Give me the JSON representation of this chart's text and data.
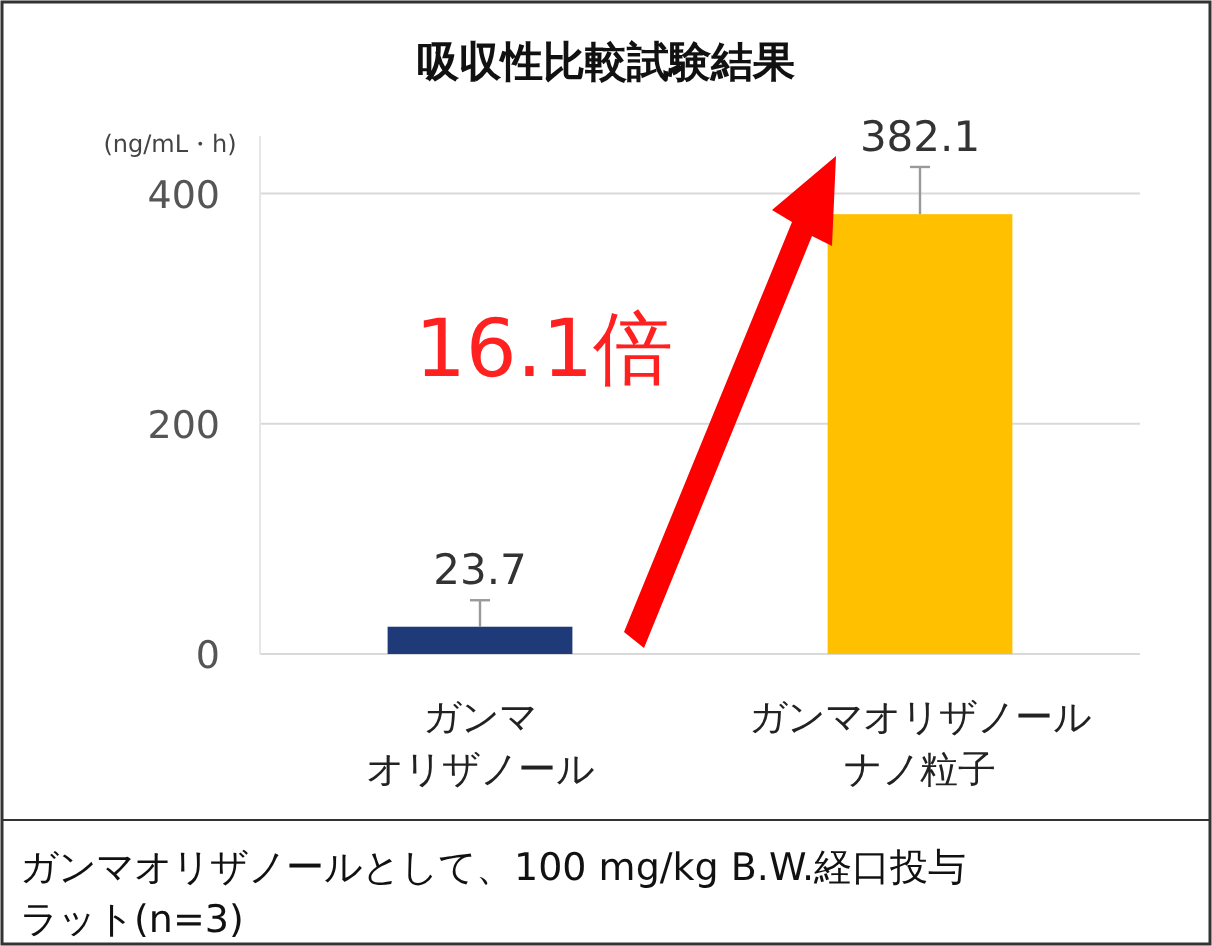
{
  "chart_data": {
    "type": "bar",
    "title": "吸収性比較試験結果",
    "ylabel": "(ng/mL・h)",
    "categories": [
      "ガンマオリザノール",
      "ガンマオリザノールナノ粒子"
    ],
    "values": [
      23.7,
      382.1
    ],
    "colors": [
      "#1f3a78",
      "#ffc000"
    ],
    "errors": [
      23,
      41
    ],
    "data_labels": true,
    "ylim": [
      0,
      450
    ],
    "yticks": [
      0,
      200,
      400
    ],
    "grid": "y",
    "annotations": [
      "16.1倍",
      "ガンマオリザノールとして、100 mg/kg B.W.経口投与",
      "ラット(n=3)"
    ]
  }
}
